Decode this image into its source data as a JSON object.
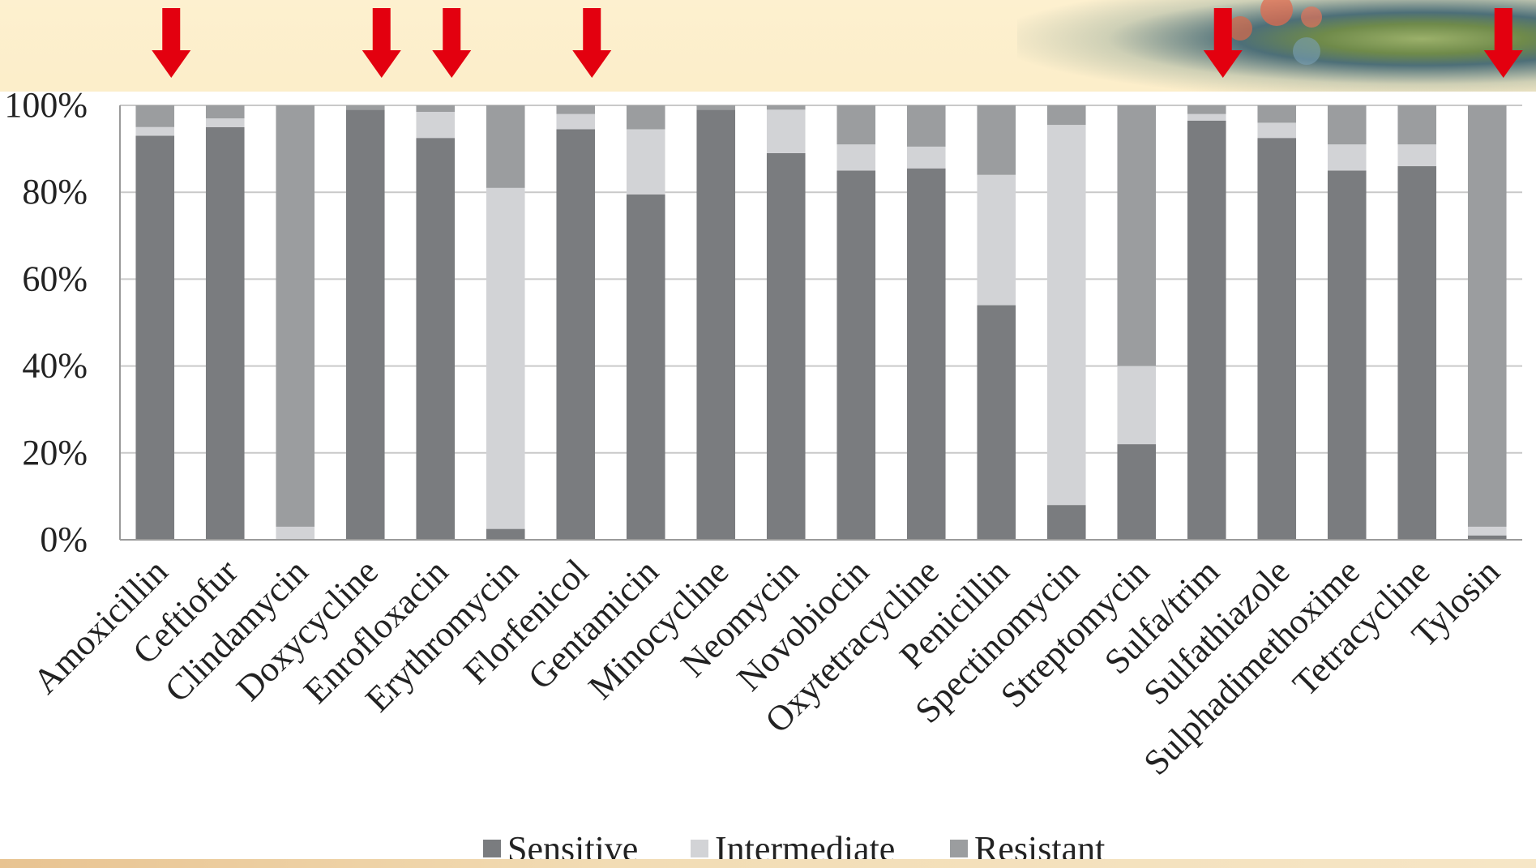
{
  "chart_data": {
    "type": "bar",
    "stacked": true,
    "percent": true,
    "title": "",
    "xlabel": "",
    "ylabel": "",
    "ylim": [
      0,
      100
    ],
    "yticks": [
      "0%",
      "20%",
      "40%",
      "60%",
      "80%",
      "100%"
    ],
    "grid": true,
    "legend_position": "bottom",
    "categories": [
      "Amoxicillin",
      "Ceftiofur",
      "Clindamycin",
      "Doxycycline",
      "Enrofloxacin",
      "Erythromycin",
      "Florfenicol",
      "Gentamicin",
      "Minocycline",
      "Neomycin",
      "Novobiocin",
      "Oxytetracycline",
      "Penicillin",
      "Spectinomycin",
      "Streptomycin",
      "Sulfa/trim",
      "Sulfathiazole",
      "Sulphadimethoxime",
      "Tetracycline",
      "Tylosin"
    ],
    "series": [
      {
        "name": "Sensitive",
        "color": "#7a7c7f",
        "values": [
          93,
          95,
          0,
          99,
          92.5,
          2.5,
          94.5,
          79.5,
          99,
          89,
          85,
          85.5,
          54,
          8,
          22,
          96.5,
          92.5,
          85,
          86,
          1
        ]
      },
      {
        "name": "Intermediate",
        "color": "#d2d3d6",
        "values": [
          2,
          2,
          3,
          0,
          6,
          78.5,
          3.5,
          15,
          0,
          10,
          6,
          5,
          30,
          87.5,
          18,
          1.5,
          3.5,
          6,
          5,
          2
        ]
      },
      {
        "name": "Resistant",
        "color": "#9b9d9f",
        "values": [
          5,
          3,
          97,
          1,
          1.5,
          19,
          2,
          5.5,
          1,
          1,
          9,
          9.5,
          16,
          4.5,
          60,
          2,
          4,
          9,
          9,
          97
        ]
      }
    ]
  },
  "highlighted": [
    "Amoxicillin",
    "Doxycycline",
    "Enrofloxacin",
    "Florfenicol",
    "Sulfa/trim",
    "Tylosin"
  ],
  "colors": {
    "arrow": "#e3000f",
    "grid": "#c9c9c9",
    "axis": "#9a9a9a"
  }
}
